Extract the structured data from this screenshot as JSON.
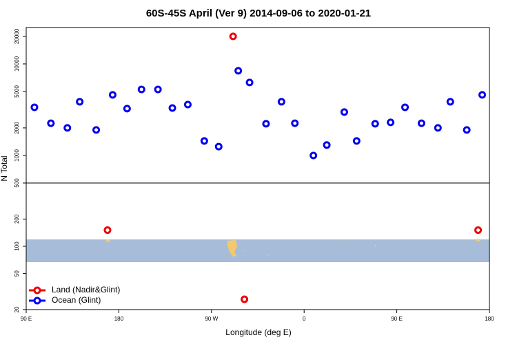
{
  "chart_data": [
    {
      "type": "scatter",
      "title": "60S-45S April (Ver 9)   2014-09-06 to 2020-01-21",
      "ylabel": "N Total",
      "log": true,
      "ylim": [
        500,
        25000
      ],
      "yticks": [
        500,
        1000,
        2000,
        5000,
        10000,
        20000
      ],
      "xlim": [
        90,
        540
      ],
      "series": [
        {
          "name": "Land (Nadir&Glint)",
          "color": "#ee0000",
          "x": [
            291
          ],
          "values": [
            20000
          ]
        },
        {
          "name": "Ocean (Glint)",
          "color": "#0000ee",
          "x": [
            98,
            114,
            130,
            142,
            158,
            174,
            188,
            202,
            218,
            232,
            247,
            263,
            277,
            296,
            307,
            323,
            338,
            351,
            369,
            382,
            399,
            411,
            429,
            444,
            458,
            474,
            490,
            502,
            518,
            533
          ],
          "values": [
            3360,
            2250,
            2000,
            3860,
            1900,
            4590,
            3250,
            5270,
            5270,
            3300,
            3600,
            1440,
            1250,
            8420,
            6270,
            2220,
            3860,
            2250,
            1000,
            1300,
            2980,
            1440,
            2220,
            2300,
            3360,
            2250,
            2000,
            3860,
            1900,
            4590
          ]
        }
      ]
    },
    {
      "type": "scatter",
      "xlabel": "Longitude (deg E)",
      "log": true,
      "ylim": [
        20,
        500
      ],
      "yticks": [
        20,
        50,
        100,
        200
      ],
      "xlim": [
        90,
        540
      ],
      "xticks": [
        {
          "value": 90,
          "label": "90 E"
        },
        180,
        {
          "value": 270,
          "label": "90 W"
        },
        {
          "value": 360,
          "label": "0"
        },
        {
          "value": 450,
          "label": "90 E"
        },
        {
          "value": 540,
          "label": "180"
        }
      ],
      "series": [
        {
          "name": "Land (Nadir&Glint)",
          "color": "#ee0000",
          "x": [
            169,
            529,
            302
          ],
          "values": [
            151,
            151,
            26
          ]
        }
      ]
    }
  ]
}
